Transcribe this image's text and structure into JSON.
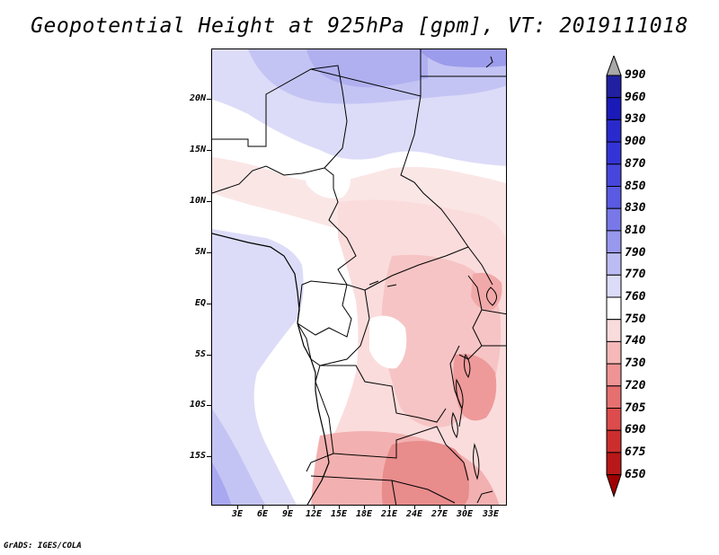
{
  "title": "Geopotential Height at 925hPa [gpm], VT: 2019111018",
  "footer": "GrADS: IGES/COLA",
  "map": {
    "region": "Central/Southern Africa",
    "lat_labels": [
      "20N",
      "15N",
      "10N",
      "5N",
      "EQ",
      "5S",
      "10S",
      "15S"
    ],
    "lon_labels": [
      "3E",
      "6E",
      "9E",
      "12E",
      "15E",
      "18E",
      "21E",
      "24E",
      "27E",
      "30E",
      "33E"
    ]
  },
  "colorbar": {
    "labels": [
      "990",
      "960",
      "930",
      "900",
      "870",
      "850",
      "830",
      "810",
      "790",
      "770",
      "760",
      "750",
      "740",
      "730",
      "720",
      "705",
      "690",
      "675",
      "650"
    ],
    "colors": [
      "#2020a0",
      "#1a1ab8",
      "#2a2acc",
      "#3434d6",
      "#4646dc",
      "#5a5ae2",
      "#7878e8",
      "#9898ee",
      "#bcbcf4",
      "#dcdcf8",
      "#ffffff",
      "#fbdcdc",
      "#f6b8b8",
      "#ef9494",
      "#e67070",
      "#dc4c4c",
      "#cc2e2e",
      "#b81818",
      "#a00000"
    ],
    "over_color": "#a8a8a8"
  }
}
